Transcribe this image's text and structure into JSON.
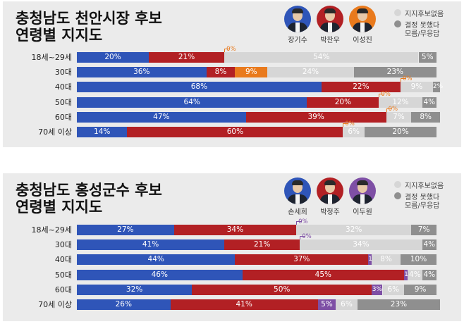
{
  "colors": {
    "panel_bg": "#ebebeb"
  },
  "panel1": {
    "title_line1": "충청남도 천안시장 후보",
    "title_line2": "연령별 지지도",
    "candidates": [
      {
        "name": "장기수",
        "color": "#2f55b8"
      },
      {
        "name": "박찬우",
        "color": "#b22024"
      },
      {
        "name": "이성진",
        "color": "#e97a1d"
      }
    ],
    "legend": {
      "item1": "지지후보없음",
      "item2": "결정 못했다",
      "item2_sub": "모름/무응답",
      "color1": "#d6d6d6",
      "color2": "#8f8f8f"
    }
  },
  "panel2": {
    "title_line1": "충청남도 홍성군수 후보",
    "title_line2": "연령별 지지도",
    "candidates": [
      {
        "name": "손세희",
        "color": "#2f55b8"
      },
      {
        "name": "박정주",
        "color": "#b22024"
      },
      {
        "name": "이두원",
        "color": "#7e4fa5"
      }
    ],
    "legend": {
      "item1": "지지후보없음",
      "item2": "결정 못했다",
      "item2_sub": "모름/무응답",
      "color1": "#d6d6d6",
      "color2": "#8f8f8f"
    }
  },
  "chart_data": [
    {
      "type": "bar",
      "stacked": true,
      "orientation": "horizontal",
      "title": "충청남도 천안시장 후보 연령별 지지도",
      "categories": [
        "18세~29세",
        "30대",
        "40대",
        "50대",
        "60대",
        "70세 이상"
      ],
      "series": [
        {
          "name": "장기수",
          "color": "#2f55b8",
          "values": [
            20,
            36,
            68,
            64,
            47,
            14
          ]
        },
        {
          "name": "박찬우",
          "color": "#b22024",
          "values": [
            21,
            8,
            22,
            20,
            39,
            60
          ]
        },
        {
          "name": "이성진",
          "color": "#e97a1d",
          "values": [
            0,
            9,
            0,
            0,
            0,
            0
          ]
        },
        {
          "name": "지지후보없음",
          "color": "#d6d6d6",
          "values": [
            54,
            24,
            9,
            12,
            7,
            6
          ]
        },
        {
          "name": "결정 못했다 모름/무응답",
          "color": "#8f8f8f",
          "values": [
            5,
            23,
            2,
            4,
            8,
            20
          ]
        }
      ],
      "xlim": [
        0,
        100
      ]
    },
    {
      "type": "bar",
      "stacked": true,
      "orientation": "horizontal",
      "title": "충청남도 홍성군수 후보 연령별 지지도",
      "categories": [
        "18세~29세",
        "30대",
        "40대",
        "50대",
        "60대",
        "70세 이상"
      ],
      "series": [
        {
          "name": "손세희",
          "color": "#2f55b8",
          "values": [
            27,
            41,
            44,
            46,
            32,
            26
          ]
        },
        {
          "name": "박정주",
          "color": "#b22024",
          "values": [
            34,
            21,
            37,
            45,
            50,
            41
          ]
        },
        {
          "name": "이두원",
          "color": "#7e4fa5",
          "values": [
            0,
            0,
            1,
            1,
            3,
            5
          ]
        },
        {
          "name": "지지후보없음",
          "color": "#d6d6d6",
          "values": [
            32,
            34,
            8,
            4,
            6,
            6
          ]
        },
        {
          "name": "결정 못했다 모름/무응답",
          "color": "#8f8f8f",
          "values": [
            7,
            4,
            10,
            4,
            9,
            23
          ]
        }
      ],
      "xlim": [
        0,
        100
      ]
    }
  ]
}
